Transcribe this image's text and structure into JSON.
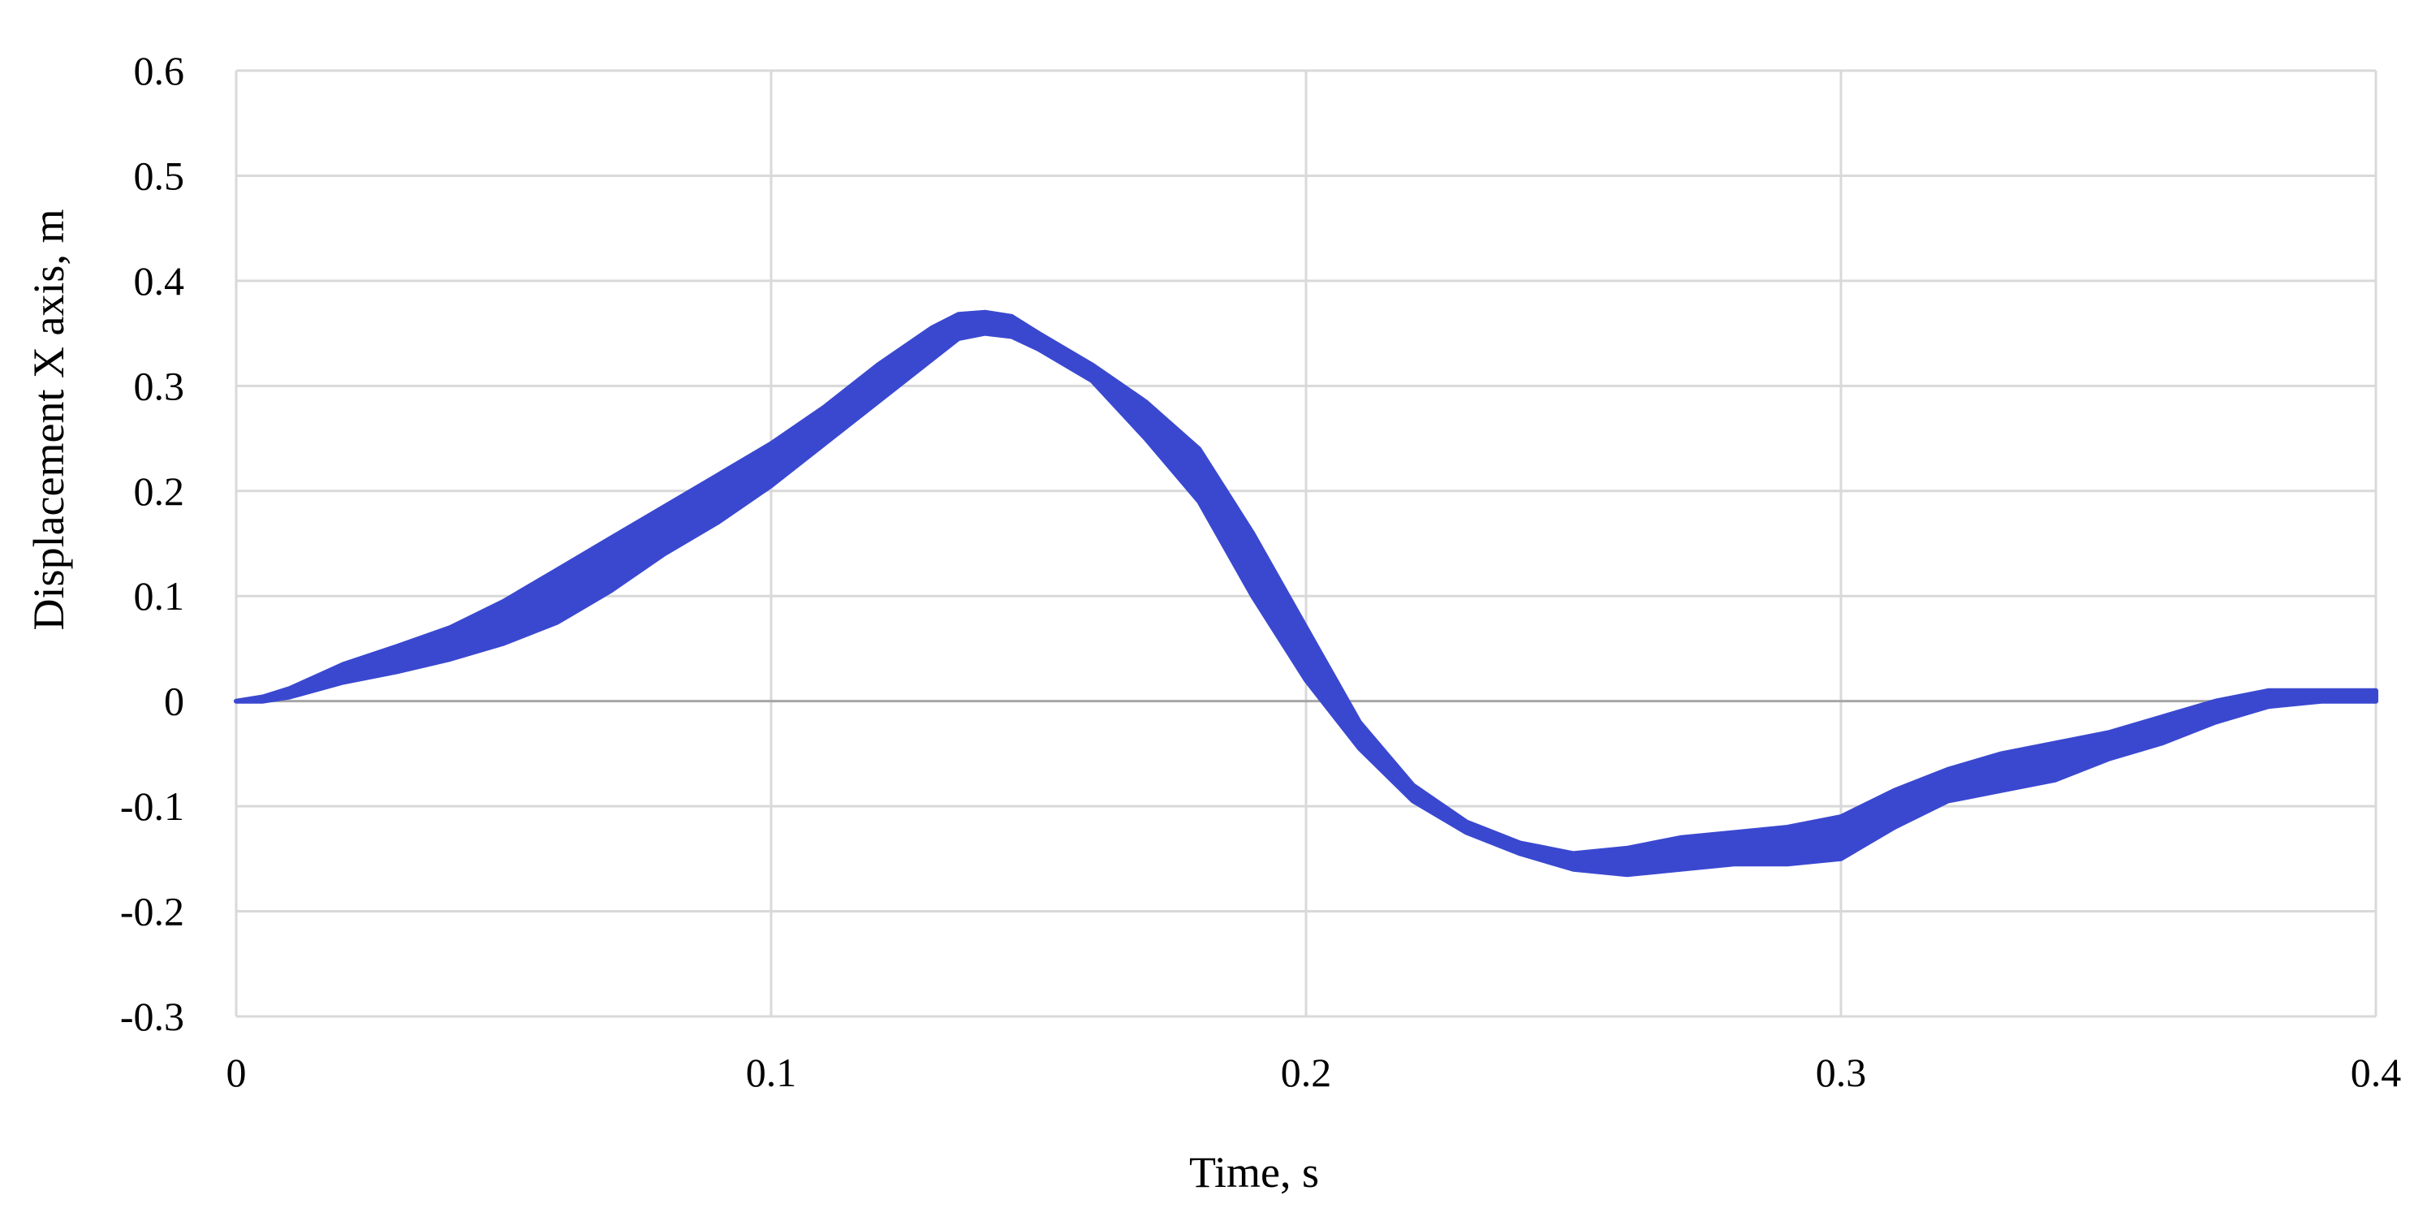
{
  "chart_data": {
    "type": "line",
    "xlabel": "Time, s",
    "ylabel": "Displacement X axis, m",
    "xlim": [
      0,
      0.4
    ],
    "ylim": [
      -0.3,
      0.6
    ],
    "x_ticks": [
      "0",
      "0.1",
      "0.2",
      "0.3",
      "0.4"
    ],
    "x_tick_values": [
      0,
      0.1,
      0.2,
      0.3,
      0.4
    ],
    "y_ticks": [
      "0.6",
      "0.5",
      "0.4",
      "0.3",
      "0.2",
      "0.1",
      "0",
      "-0.1",
      "-0.2",
      "-0.3"
    ],
    "y_tick_values": [
      0.6,
      0.5,
      0.4,
      0.3,
      0.2,
      0.1,
      0,
      -0.1,
      -0.2,
      -0.3
    ],
    "grid": true,
    "legend": "none",
    "series": [
      {
        "color": "#3a48d0",
        "x": [
          0,
          0.005,
          0.01,
          0.02,
          0.03,
          0.04,
          0.05,
          0.06,
          0.07,
          0.08,
          0.09,
          0.1,
          0.11,
          0.12,
          0.13,
          0.135,
          0.14,
          0.145,
          0.15,
          0.16,
          0.17,
          0.18,
          0.19,
          0.2,
          0.21,
          0.22,
          0.23,
          0.24,
          0.25,
          0.26,
          0.27,
          0.28,
          0.29,
          0.3,
          0.31,
          0.32,
          0.33,
          0.34,
          0.35,
          0.36,
          0.37,
          0.38,
          0.39,
          0.4
        ],
        "upper": [
          0,
          0.004,
          0.012,
          0.035,
          0.052,
          0.07,
          0.095,
          0.125,
          0.155,
          0.185,
          0.215,
          0.245,
          0.28,
          0.32,
          0.355,
          0.368,
          0.37,
          0.366,
          0.35,
          0.32,
          0.285,
          0.24,
          0.16,
          0.07,
          -0.02,
          -0.08,
          -0.115,
          -0.135,
          -0.145,
          -0.14,
          -0.13,
          -0.125,
          -0.12,
          -0.11,
          -0.085,
          -0.065,
          -0.05,
          -0.04,
          -0.03,
          -0.015,
          0.0,
          0.01,
          0.01,
          0.01
        ],
        "lower": [
          0,
          0.0,
          0.004,
          0.018,
          0.028,
          0.04,
          0.055,
          0.075,
          0.105,
          0.14,
          0.17,
          0.205,
          0.245,
          0.285,
          0.325,
          0.345,
          0.35,
          0.347,
          0.335,
          0.305,
          0.25,
          0.19,
          0.1,
          0.02,
          -0.045,
          -0.095,
          -0.125,
          -0.145,
          -0.16,
          -0.165,
          -0.16,
          -0.155,
          -0.155,
          -0.15,
          -0.12,
          -0.095,
          -0.085,
          -0.075,
          -0.055,
          -0.04,
          -0.02,
          -0.005,
          0.0,
          0.0
        ]
      }
    ]
  }
}
